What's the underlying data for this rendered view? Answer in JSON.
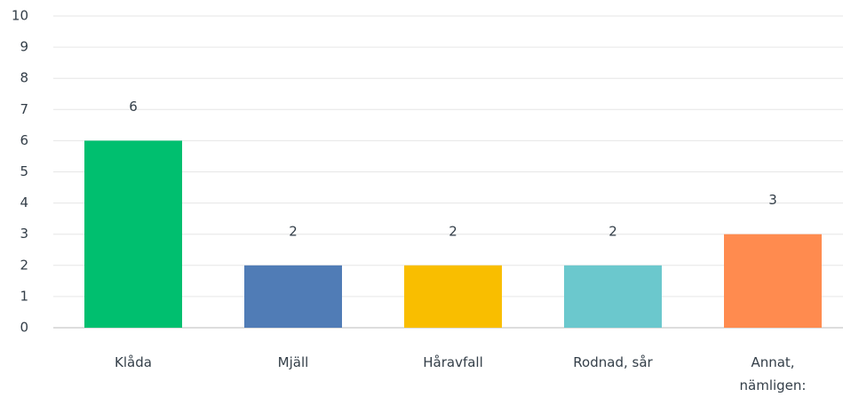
{
  "chart_data": {
    "type": "bar",
    "categories": [
      "Klåda",
      "Mjäll",
      "Håravfall",
      "Rodnad, sår",
      "Annat, nämligen:"
    ],
    "values": [
      6,
      2,
      2,
      2,
      3
    ],
    "colors": [
      "#00bf6f",
      "#507cb6",
      "#f9be00",
      "#6bc8cd",
      "#ff8b4f"
    ],
    "ylim": [
      0,
      10
    ],
    "yticks": [
      0,
      1,
      2,
      3,
      4,
      5,
      6,
      7,
      8,
      9,
      10
    ],
    "grid": true
  }
}
